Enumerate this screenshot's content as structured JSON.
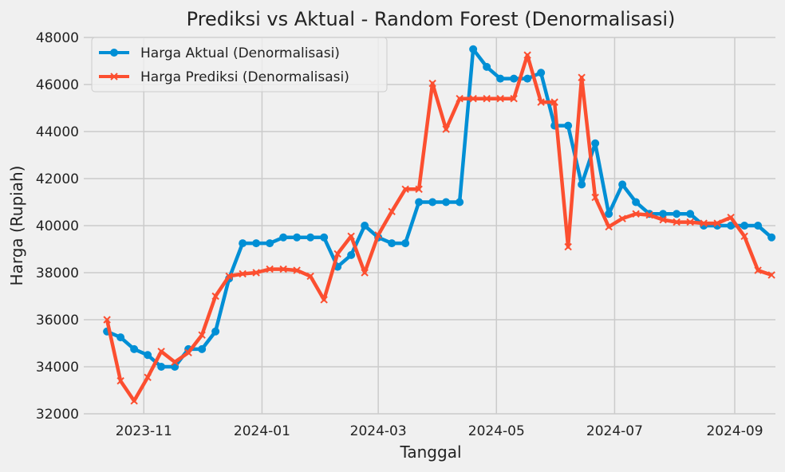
{
  "chart_data": {
    "type": "line",
    "title": "Prediksi vs Aktual - Random Forest (Denormalisasi)",
    "xlabel": "Tanggal",
    "ylabel": "Harga (Rupiah)",
    "ylim": [
      32000,
      48000
    ],
    "yticks": [
      32000,
      34000,
      36000,
      38000,
      40000,
      42000,
      44000,
      46000,
      48000
    ],
    "xlim": [
      "2023-10-01",
      "2024-09-22"
    ],
    "xticks": [
      {
        "date": "2023-11-01",
        "label": "2023-11"
      },
      {
        "date": "2024-01-01",
        "label": "2024-01"
      },
      {
        "date": "2024-03-01",
        "label": "2024-03"
      },
      {
        "date": "2024-05-01",
        "label": "2024-05"
      },
      {
        "date": "2024-07-01",
        "label": "2024-07"
      },
      {
        "date": "2024-09-01",
        "label": "2024-09"
      }
    ],
    "grid": true,
    "legend_position": "top-left",
    "dates": [
      "2023-10-13",
      "2023-10-20",
      "2023-10-27",
      "2023-11-03",
      "2023-11-10",
      "2023-11-17",
      "2023-11-24",
      "2023-12-01",
      "2023-12-08",
      "2023-12-15",
      "2023-12-22",
      "2023-12-29",
      "2024-01-05",
      "2024-01-12",
      "2024-01-19",
      "2024-01-26",
      "2024-02-02",
      "2024-02-09",
      "2024-02-16",
      "2024-02-23",
      "2024-03-01",
      "2024-03-08",
      "2024-03-15",
      "2024-03-22",
      "2024-03-29",
      "2024-04-05",
      "2024-04-12",
      "2024-04-19",
      "2024-04-26",
      "2024-05-03",
      "2024-05-10",
      "2024-05-17",
      "2024-05-24",
      "2024-05-31",
      "2024-06-07",
      "2024-06-14",
      "2024-06-21",
      "2024-06-28",
      "2024-07-05",
      "2024-07-12",
      "2024-07-19",
      "2024-07-26",
      "2024-08-02",
      "2024-08-09",
      "2024-08-16",
      "2024-08-23",
      "2024-08-30",
      "2024-09-06",
      "2024-09-13",
      "2024-09-20"
    ],
    "series": [
      {
        "name": "Harga Aktual (Denormalisasi)",
        "color": "#008fd5",
        "marker": "circle",
        "values": [
          35500,
          35250,
          34750,
          34500,
          34000,
          34000,
          34750,
          34750,
          35500,
          37750,
          39250,
          39250,
          39250,
          39500,
          39500,
          39500,
          39500,
          38250,
          38750,
          40000,
          39500,
          39250,
          39250,
          41000,
          41000,
          41000,
          41000,
          47500,
          46750,
          46250,
          46250,
          46250,
          46500,
          44250,
          44250,
          41750,
          43500,
          40500,
          41750,
          41000,
          40500,
          40500,
          40500,
          40500,
          40000,
          40000,
          40000,
          40000,
          40000,
          39500
        ]
      },
      {
        "name": "Harga Prediksi (Denormalisasi)",
        "color": "#fc4f30",
        "marker": "x",
        "values": [
          36000,
          33400,
          32550,
          33550,
          34650,
          34200,
          34600,
          35350,
          37000,
          37850,
          37950,
          38000,
          38150,
          38150,
          38100,
          37850,
          36850,
          38800,
          39550,
          38000,
          39600,
          40600,
          41550,
          41550,
          46050,
          44100,
          45400,
          45400,
          45400,
          45400,
          45400,
          47250,
          45250,
          45250,
          39100,
          46300,
          41200,
          39950,
          40300,
          40500,
          40450,
          40250,
          40150,
          40150,
          40100,
          40100,
          40350,
          39550,
          38100,
          37900
        ]
      }
    ]
  }
}
